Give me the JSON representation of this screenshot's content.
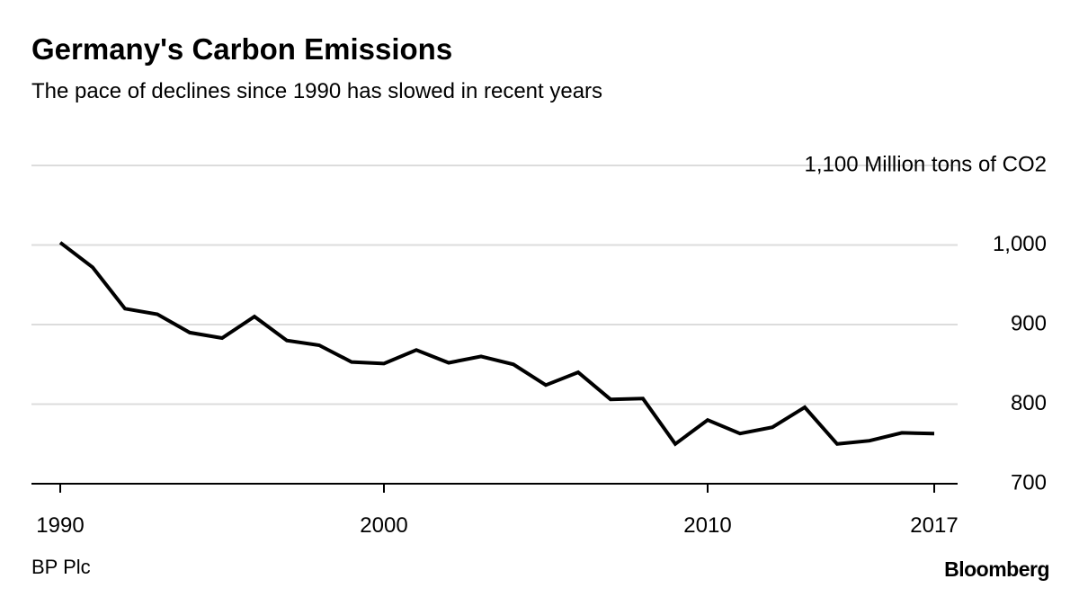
{
  "header": {
    "title": "Germany's Carbon Emissions",
    "subtitle": "The pace of declines since 1990 has slowed in recent years"
  },
  "footer": {
    "source": "BP Plc",
    "brand": "Bloomberg"
  },
  "chart_data": {
    "type": "line",
    "title": "Germany's Carbon Emissions",
    "subtitle": "The pace of declines since 1990 has slowed in recent years",
    "unit_label": "Million tons of CO2",
    "x": [
      1990,
      1991,
      1992,
      1993,
      1994,
      1995,
      1996,
      1997,
      1998,
      1999,
      2000,
      2001,
      2002,
      2003,
      2004,
      2005,
      2006,
      2007,
      2008,
      2009,
      2010,
      2011,
      2012,
      2013,
      2014,
      2015,
      2016,
      2017
    ],
    "values": [
      1003,
      972,
      920,
      913,
      890,
      883,
      910,
      880,
      874,
      853,
      851,
      868,
      852,
      860,
      850,
      824,
      840,
      806,
      807,
      750,
      780,
      763,
      771,
      796,
      750,
      754,
      764,
      763
    ],
    "xlim": [
      1990,
      2017
    ],
    "ylim": [
      700,
      1100
    ],
    "yticks": [
      {
        "value": 700,
        "label": "700"
      },
      {
        "value": 800,
        "label": "800"
      },
      {
        "value": 900,
        "label": "900"
      },
      {
        "value": 1000,
        "label": "1,000"
      },
      {
        "value": 1100,
        "label": "1,100 Million tons of CO2"
      }
    ],
    "xticks": [
      {
        "value": 1990,
        "label": "1990"
      },
      {
        "value": 2000,
        "label": "2000"
      },
      {
        "value": 2010,
        "label": "2010"
      },
      {
        "value": 2017,
        "label": "2017"
      }
    ],
    "grid": true,
    "legend": "none",
    "line_color": "#000000",
    "grid_color": "#dcdcdc",
    "axis_color": "#000000",
    "label_color": "#000000",
    "source": "BP Plc"
  }
}
